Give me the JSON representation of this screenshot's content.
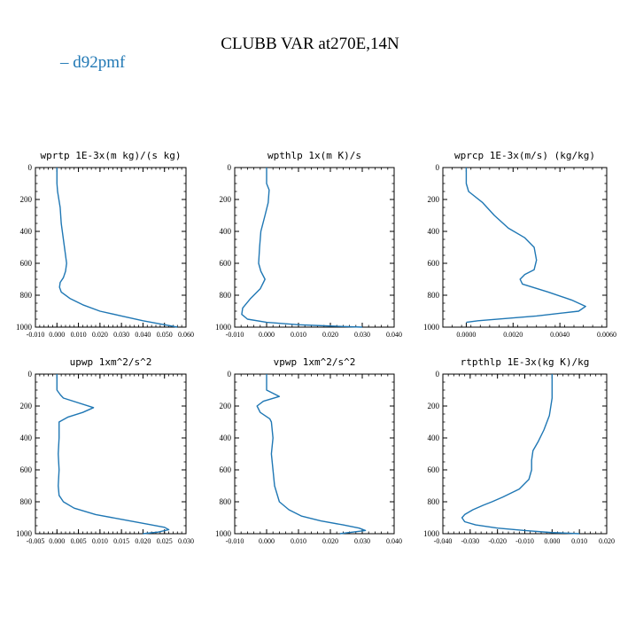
{
  "figure": {
    "title": "CLUBB VAR at270E,14N",
    "legend": {
      "label": "d92pmf",
      "color": "#1f77b4"
    }
  },
  "chart_data": [
    {
      "type": "line",
      "title": "wprtp  1E-3x(m kg)/(s kg)",
      "xlim": [
        -0.01,
        0.06
      ],
      "ylim": [
        1000,
        0
      ],
      "xticks": [
        -0.01,
        0.0,
        0.01,
        0.02,
        0.03,
        0.04,
        0.05,
        0.06
      ],
      "xtick_labels": [
        "-0.010",
        "0.000",
        "0.010",
        "0.020",
        "0.030",
        "0.040",
        "0.050",
        "0.060"
      ],
      "yticks": [
        0,
        200,
        400,
        600,
        800,
        1000
      ],
      "ytick_labels": [
        "0",
        "200",
        "400",
        "600",
        "800",
        "1000"
      ],
      "series": [
        {
          "name": "d92pmf",
          "color": "#1f77b4",
          "x": [
            0.0,
            0.0,
            0.0003,
            0.0015,
            0.002,
            0.003,
            0.004,
            0.0045,
            0.004,
            0.003,
            0.0015,
            0.0012,
            0.002,
            0.006,
            0.012,
            0.02,
            0.03,
            0.04,
            0.05,
            0.056
          ],
          "y": [
            0,
            100,
            150,
            250,
            350,
            450,
            550,
            600,
            650,
            690,
            720,
            750,
            780,
            820,
            860,
            900,
            930,
            960,
            985,
            1000
          ]
        }
      ]
    },
    {
      "type": "line",
      "title": "wpthlp  1x(m K)/s",
      "xlim": [
        -0.01,
        0.04
      ],
      "ylim": [
        1000,
        0
      ],
      "xticks": [
        -0.01,
        0.0,
        0.01,
        0.02,
        0.03,
        0.04
      ],
      "xtick_labels": [
        "-0.010",
        "0.000",
        "0.010",
        "0.020",
        "0.030",
        "0.040"
      ],
      "yticks": [
        0,
        200,
        400,
        600,
        800,
        1000
      ],
      "ytick_labels": [
        "0",
        "200",
        "400",
        "600",
        "800",
        "1000"
      ],
      "series": [
        {
          "name": "d92pmf",
          "color": "#1f77b4",
          "x": [
            0.0,
            0.0,
            0.0008,
            0.0005,
            -0.0005,
            -0.0018,
            -0.0022,
            -0.0025,
            -0.0018,
            -0.0005,
            -0.002,
            -0.005,
            -0.0075,
            -0.0078,
            -0.006,
            0.0,
            0.01,
            0.02,
            0.03
          ],
          "y": [
            0,
            100,
            140,
            220,
            300,
            400,
            500,
            600,
            650,
            700,
            760,
            820,
            880,
            920,
            950,
            970,
            985,
            993,
            1000
          ]
        }
      ]
    },
    {
      "type": "line",
      "title": "wprcp  1E-3x(m/s) (kg/kg)",
      "xlim": [
        -0.001,
        0.006
      ],
      "ylim": [
        1000,
        0
      ],
      "xticks": [
        0.0,
        0.002,
        0.004,
        0.006
      ],
      "xtick_labels": [
        "0.0000",
        "0.0020",
        "0.0040",
        "0.0060"
      ],
      "yticks": [
        0,
        200,
        400,
        600,
        800,
        1000
      ],
      "ytick_labels": [
        "0",
        "200",
        "400",
        "600",
        "800",
        "1000"
      ],
      "series": [
        {
          "name": "d92pmf",
          "color": "#1f77b4",
          "x": [
            0.0,
            0.0,
            0.0001,
            0.0007,
            0.0012,
            0.0018,
            0.0025,
            0.0029,
            0.003,
            0.0029,
            0.0025,
            0.0023,
            0.0024,
            0.0035,
            0.0045,
            0.0051,
            0.0048,
            0.003,
            0.0005,
            0.0
          ],
          "y": [
            0,
            100,
            150,
            220,
            300,
            380,
            440,
            500,
            580,
            640,
            670,
            700,
            730,
            780,
            830,
            870,
            900,
            930,
            960,
            970
          ]
        }
      ]
    },
    {
      "type": "line",
      "title": "upwp  1xm^2/s^2",
      "xlim": [
        -0.005,
        0.03
      ],
      "ylim": [
        1000,
        0
      ],
      "xticks": [
        -0.005,
        0.0,
        0.005,
        0.01,
        0.015,
        0.02,
        0.025,
        0.03
      ],
      "xtick_labels": [
        "-0.005",
        "0.000",
        "0.005",
        "0.010",
        "0.015",
        "0.020",
        "0.025",
        "0.030"
      ],
      "yticks": [
        0,
        200,
        400,
        600,
        800,
        1000
      ],
      "ytick_labels": [
        "0",
        "200",
        "400",
        "600",
        "800",
        "1000"
      ],
      "series": [
        {
          "name": "d92pmf",
          "color": "#1f77b4",
          "x": [
            0.0,
            0.0,
            0.0008,
            0.0015,
            0.0085,
            0.006,
            0.0025,
            0.0005,
            0.0005,
            0.0003,
            0.0005,
            0.0003,
            0.0005,
            0.0015,
            0.004,
            0.009,
            0.015,
            0.021,
            0.025,
            0.026,
            0.0235,
            0.02
          ],
          "y": [
            0,
            100,
            130,
            150,
            210,
            240,
            270,
            300,
            400,
            500,
            600,
            700,
            760,
            800,
            840,
            880,
            910,
            940,
            960,
            975,
            990,
            1000
          ]
        }
      ]
    },
    {
      "type": "line",
      "title": "vpwp  1xm^2/s^2",
      "xlim": [
        -0.01,
        0.04
      ],
      "ylim": [
        1000,
        0
      ],
      "xticks": [
        -0.01,
        0.0,
        0.01,
        0.02,
        0.03,
        0.04
      ],
      "xtick_labels": [
        "-0.010",
        "0.000",
        "0.010",
        "0.020",
        "0.030",
        "0.040"
      ],
      "yticks": [
        0,
        200,
        400,
        600,
        800,
        1000
      ],
      "ytick_labels": [
        "0",
        "200",
        "400",
        "600",
        "800",
        "1000"
      ],
      "series": [
        {
          "name": "d92pmf",
          "color": "#1f77b4",
          "x": [
            0.0,
            0.0,
            0.002,
            0.004,
            -0.001,
            -0.003,
            -0.002,
            0.001,
            0.0015,
            0.002,
            0.0015,
            0.002,
            0.0025,
            0.004,
            0.007,
            0.011,
            0.017,
            0.024,
            0.029,
            0.031,
            0.027,
            0.023
          ],
          "y": [
            0,
            100,
            120,
            140,
            170,
            200,
            240,
            280,
            300,
            400,
            500,
            600,
            700,
            800,
            850,
            890,
            920,
            945,
            965,
            980,
            990,
            1000
          ]
        }
      ]
    },
    {
      "type": "line",
      "title": "rtpthlp  1E-3x(kg K)/kg",
      "xlim": [
        -0.04,
        0.02
      ],
      "ylim": [
        1000,
        0
      ],
      "xticks": [
        -0.04,
        -0.03,
        -0.02,
        -0.01,
        0.0,
        0.01,
        0.02
      ],
      "xtick_labels": [
        "-0.040",
        "-0.030",
        "-0.020",
        "-0.010",
        "0.000",
        "0.010",
        "0.020"
      ],
      "yticks": [
        0,
        200,
        400,
        600,
        800,
        1000
      ],
      "ytick_labels": [
        "0",
        "200",
        "400",
        "600",
        "800",
        "1000"
      ],
      "series": [
        {
          "name": "d92pmf",
          "color": "#1f77b4",
          "x": [
            0.0,
            0.0,
            -0.001,
            -0.003,
            -0.005,
            -0.007,
            -0.0075,
            -0.0075,
            -0.0085,
            -0.012,
            -0.018,
            -0.022,
            -0.025,
            -0.029,
            -0.032,
            -0.033,
            -0.032,
            -0.028,
            -0.02,
            -0.01,
            0.0,
            0.01
          ],
          "y": [
            0,
            150,
            260,
            350,
            420,
            480,
            540,
            600,
            660,
            720,
            770,
            800,
            820,
            850,
            880,
            900,
            925,
            945,
            965,
            980,
            993,
            1000
          ]
        }
      ]
    }
  ]
}
